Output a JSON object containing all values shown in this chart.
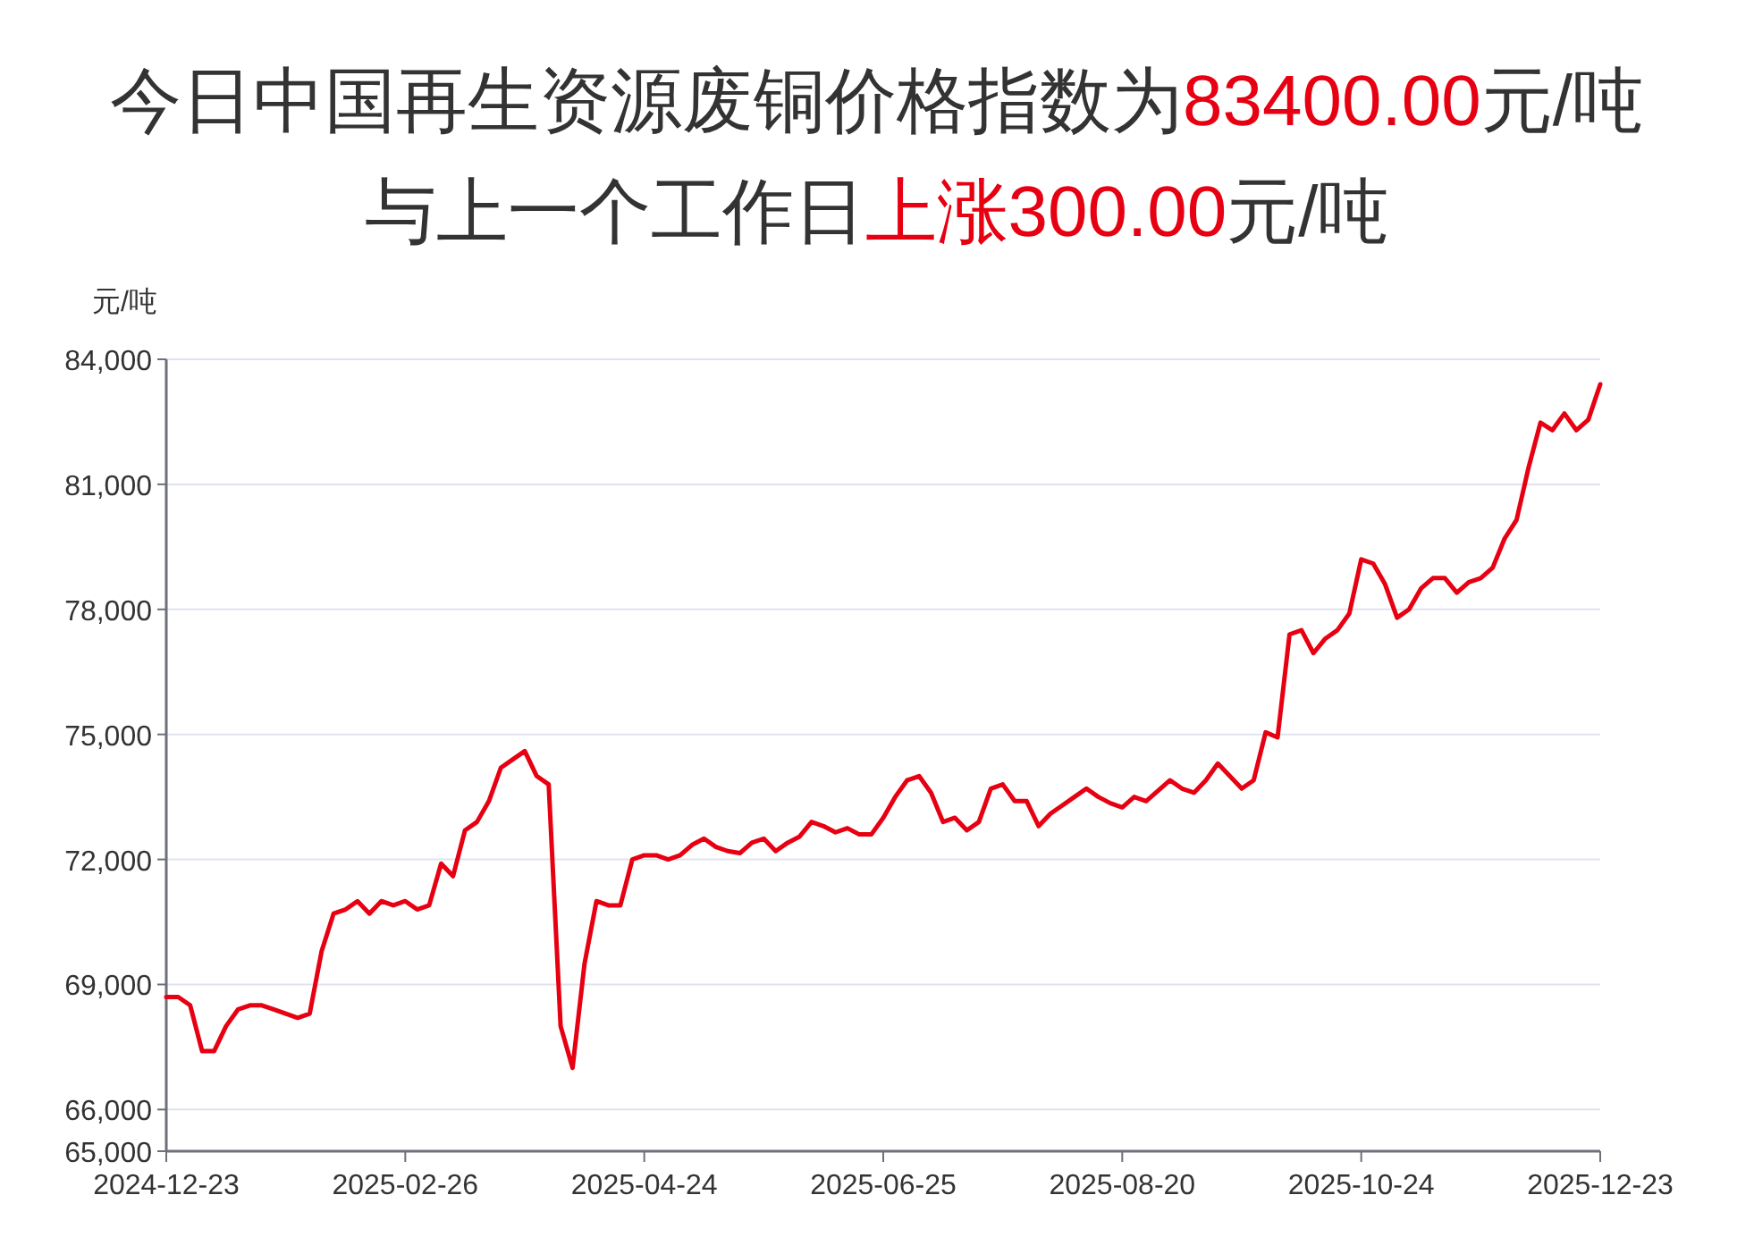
{
  "chart_data": {
    "type": "line",
    "title": "今日中国再生资源废铜价格指数为**83400.00**元/吨",
    "subtitle": "与上一个工作日**上涨300.00**元/吨",
    "ylabel": "元/吨",
    "categories": [
      "2024-12-23",
      null,
      null,
      null,
      null,
      null,
      null,
      null,
      null,
      null,
      null,
      null,
      null,
      null,
      null,
      null,
      null,
      null,
      null,
      null,
      "2025-02-26",
      null,
      null,
      null,
      null,
      null,
      null,
      null,
      null,
      null,
      null,
      null,
      null,
      null,
      null,
      null,
      null,
      null,
      null,
      null,
      "2025-04-24",
      null,
      null,
      null,
      null,
      null,
      null,
      null,
      null,
      null,
      null,
      null,
      null,
      null,
      null,
      null,
      null,
      null,
      null,
      null,
      "2025-06-25",
      null,
      null,
      null,
      null,
      null,
      null,
      null,
      null,
      null,
      null,
      null,
      null,
      null,
      null,
      null,
      null,
      null,
      null,
      null,
      "2025-08-20",
      null,
      null,
      null,
      null,
      null,
      null,
      null,
      null,
      null,
      null,
      null,
      null,
      null,
      null,
      null,
      null,
      null,
      null,
      null,
      "2025-10-24",
      null,
      null,
      null,
      null,
      null,
      null,
      null,
      null,
      null,
      null,
      null,
      null,
      null,
      null,
      null,
      null,
      null,
      null,
      null,
      "2025-12-23"
    ],
    "series": [
      {
        "color": "#e60012",
        "values": [
          68700,
          68700,
          68500,
          67400,
          67400,
          68000,
          68400,
          68500,
          68500,
          68400,
          68300,
          68200,
          68300,
          69800,
          70700,
          70800,
          71000,
          70700,
          71000,
          70900,
          71000,
          70800,
          70900,
          71900,
          71600,
          72700,
          72900,
          73400,
          74200,
          74400,
          74600,
          74000,
          73800,
          68000,
          67000,
          69500,
          71000,
          70900,
          70900,
          72000,
          72100,
          72100,
          72000,
          72100,
          72350,
          72500,
          72300,
          72200,
          72150,
          72400,
          72500,
          72200,
          72400,
          72550,
          72900,
          72800,
          72650,
          72750,
          72600,
          72600,
          73000,
          73500,
          73900,
          74000,
          73600,
          72900,
          73000,
          72700,
          72900,
          73700,
          73800,
          73400,
          73400,
          72800,
          73100,
          73300,
          73500,
          73700,
          73500,
          73350,
          73250,
          73500,
          73400,
          73650,
          73900,
          73700,
          73600,
          73900,
          74300,
          74000,
          73700,
          73900,
          75050,
          74930,
          77400,
          77500,
          76950,
          77300,
          77500,
          77900,
          79200,
          79100,
          78600,
          77800,
          78000,
          78500,
          78750,
          78750,
          78400,
          78650,
          78750,
          79000,
          79700,
          80150,
          81400,
          82480,
          82300,
          82700,
          82300,
          82550,
          83400
        ]
      }
    ],
    "ylim": [
      65000,
      84000
    ],
    "yticks": [
      {
        "value": 65000,
        "label": "65,000"
      },
      {
        "value": 66000,
        "label": "66,000"
      },
      {
        "value": 69000,
        "label": "69,000"
      },
      {
        "value": 72000,
        "label": "72,000"
      },
      {
        "value": 75000,
        "label": "75,000"
      },
      {
        "value": 78000,
        "label": "78,000"
      },
      {
        "value": 81000,
        "label": "81,000"
      },
      {
        "value": 84000,
        "label": "84,000"
      }
    ],
    "grid": "y",
    "marker": "none",
    "line_style": "solid"
  }
}
